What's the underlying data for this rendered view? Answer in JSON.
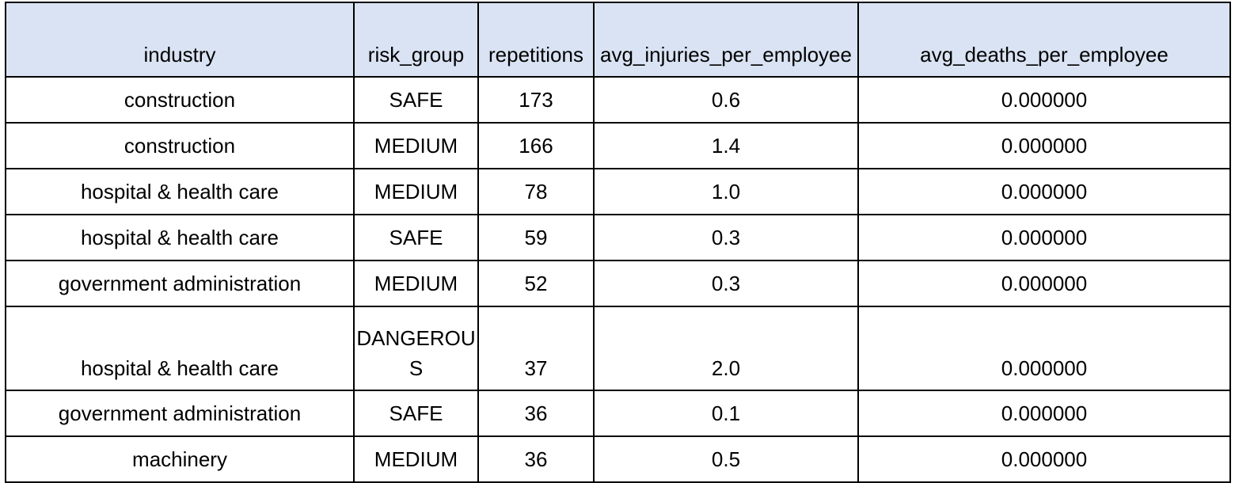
{
  "table": {
    "headers": [
      "industry",
      "risk_group",
      "repetitions",
      "avg_injuries_per_employee",
      "avg_deaths_per_employee"
    ],
    "rows": [
      [
        "construction",
        "SAFE",
        "173",
        "0.6",
        "0.000000"
      ],
      [
        "construction",
        "MEDIUM",
        "166",
        "1.4",
        "0.000000"
      ],
      [
        "hospital & health care",
        "MEDIUM",
        "78",
        "1.0",
        "0.000000"
      ],
      [
        "hospital & health care",
        "SAFE",
        "59",
        "0.3",
        "0.000000"
      ],
      [
        "government administration",
        "MEDIUM",
        "52",
        "0.3",
        "0.000000"
      ],
      [
        "hospital & health care",
        "DANGEROUS",
        "37",
        "2.0",
        "0.000000"
      ],
      [
        "government administration",
        "SAFE",
        "36",
        "0.1",
        "0.000000"
      ],
      [
        "machinery",
        "MEDIUM",
        "36",
        "0.5",
        "0.000000"
      ]
    ]
  },
  "colors": {
    "header_background": "#dae3f3",
    "border": "#000000"
  }
}
